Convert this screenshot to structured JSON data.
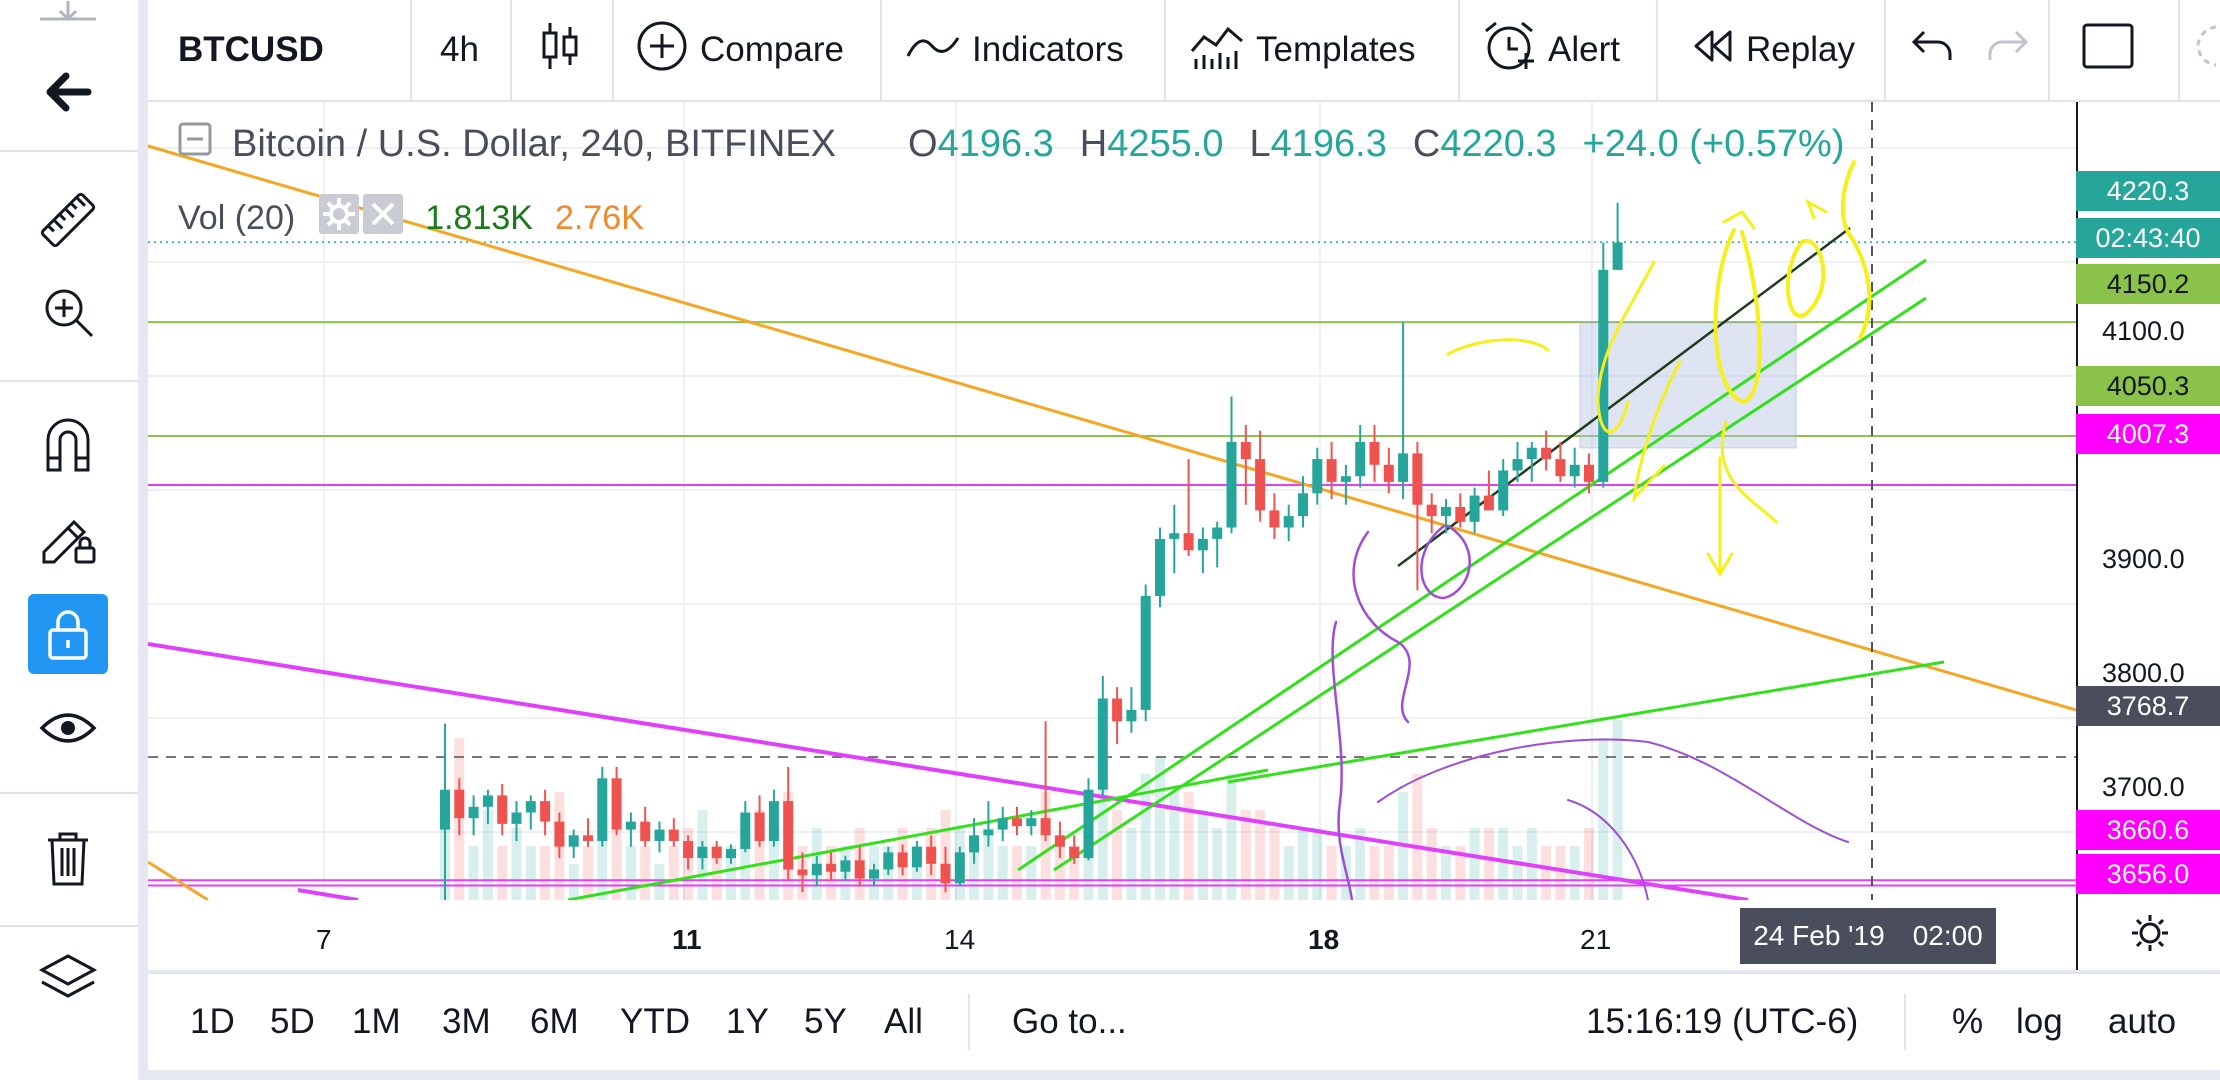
{
  "toolbar": {
    "symbol": "BTCUSD",
    "interval": "4h",
    "compare": "Compare",
    "indicators": "Indicators",
    "templates": "Templates",
    "alert": "Alert",
    "replay": "Replay"
  },
  "legend": {
    "title": "Bitcoin / U.S. Dollar, 240, BITFINEX",
    "o_label": "O",
    "o_value": "4196.3",
    "h_label": "H",
    "h_value": "4255.0",
    "l_label": "L",
    "l_value": "4196.3",
    "c_label": "C",
    "c_value": "4220.3",
    "change": "+24.0 (+0.57%)",
    "vol_label": "Vol (20)",
    "vol_value_1": "1.813K",
    "vol_value_2": "2.76K"
  },
  "price_axis": {
    "ticks": [
      "4100.0",
      "3900.0",
      "3800.0",
      "3700.0"
    ],
    "badges": {
      "last": "4220.3",
      "countdown": "02:43:40",
      "level_4150": "4150.2",
      "level_4050": "4050.3",
      "level_4007": "4007.3",
      "crosshair": "3768.7",
      "level_3660": "3660.6",
      "level_3656": "3656.0"
    }
  },
  "time_axis": {
    "ticks": [
      "7",
      "11",
      "14",
      "18",
      "21"
    ],
    "crosshair_date": "24 Feb '19",
    "crosshair_time": "02:00"
  },
  "bottombar": {
    "ranges": [
      "1D",
      "5D",
      "1M",
      "3M",
      "6M",
      "YTD",
      "1Y",
      "5Y",
      "All"
    ],
    "goto": "Go to...",
    "clock": "15:16:19 (UTC-6)",
    "percent": "%",
    "log": "log",
    "auto": "auto"
  },
  "colors": {
    "up": "#26a69a",
    "down": "#ef5350",
    "orange_line": "#f5a623",
    "magenta_line": "#e040fb",
    "green_line": "#33e01c",
    "level_green": "#8bc34a",
    "vol_orange": "#ef8a2e",
    "vol_green": "#1b7a1b"
  },
  "chart_data": {
    "type": "candlestick",
    "symbol": "BTCUSD",
    "candles": [
      {
        "o": 3705,
        "h": 3798,
        "l": 3640,
        "c": 3740
      },
      {
        "o": 3740,
        "h": 3750,
        "l": 3700,
        "c": 3715
      },
      {
        "o": 3715,
        "h": 3735,
        "l": 3700,
        "c": 3725
      },
      {
        "o": 3725,
        "h": 3740,
        "l": 3710,
        "c": 3735
      },
      {
        "o": 3735,
        "h": 3745,
        "l": 3700,
        "c": 3710
      },
      {
        "o": 3710,
        "h": 3730,
        "l": 3695,
        "c": 3720
      },
      {
        "o": 3720,
        "h": 3735,
        "l": 3705,
        "c": 3730
      },
      {
        "o": 3730,
        "h": 3740,
        "l": 3700,
        "c": 3712
      },
      {
        "o": 3712,
        "h": 3720,
        "l": 3680,
        "c": 3690
      },
      {
        "o": 3690,
        "h": 3705,
        "l": 3680,
        "c": 3700
      },
      {
        "o": 3700,
        "h": 3715,
        "l": 3690,
        "c": 3695
      },
      {
        "o": 3695,
        "h": 3760,
        "l": 3690,
        "c": 3750
      },
      {
        "o": 3750,
        "h": 3760,
        "l": 3700,
        "c": 3705
      },
      {
        "o": 3705,
        "h": 3720,
        "l": 3690,
        "c": 3712
      },
      {
        "o": 3712,
        "h": 3725,
        "l": 3690,
        "c": 3695
      },
      {
        "o": 3695,
        "h": 3712,
        "l": 3685,
        "c": 3705
      },
      {
        "o": 3705,
        "h": 3715,
        "l": 3690,
        "c": 3695
      },
      {
        "o": 3695,
        "h": 3700,
        "l": 3670,
        "c": 3680
      },
      {
        "o": 3680,
        "h": 3695,
        "l": 3670,
        "c": 3690
      },
      {
        "o": 3690,
        "h": 3695,
        "l": 3675,
        "c": 3680
      },
      {
        "o": 3680,
        "h": 3692,
        "l": 3675,
        "c": 3688
      },
      {
        "o": 3688,
        "h": 3730,
        "l": 3685,
        "c": 3720
      },
      {
        "o": 3720,
        "h": 3735,
        "l": 3690,
        "c": 3695
      },
      {
        "o": 3695,
        "h": 3740,
        "l": 3690,
        "c": 3730
      },
      {
        "o": 3730,
        "h": 3760,
        "l": 3660,
        "c": 3670
      },
      {
        "o": 3670,
        "h": 3685,
        "l": 3650,
        "c": 3665
      },
      {
        "o": 3665,
        "h": 3682,
        "l": 3655,
        "c": 3675
      },
      {
        "o": 3675,
        "h": 3685,
        "l": 3660,
        "c": 3668
      },
      {
        "o": 3668,
        "h": 3682,
        "l": 3660,
        "c": 3678
      },
      {
        "o": 3678,
        "h": 3690,
        "l": 3655,
        "c": 3662
      },
      {
        "o": 3662,
        "h": 3675,
        "l": 3655,
        "c": 3670
      },
      {
        "o": 3670,
        "h": 3690,
        "l": 3665,
        "c": 3685
      },
      {
        "o": 3685,
        "h": 3692,
        "l": 3665,
        "c": 3672
      },
      {
        "o": 3672,
        "h": 3695,
        "l": 3668,
        "c": 3690
      },
      {
        "o": 3690,
        "h": 3700,
        "l": 3665,
        "c": 3675
      },
      {
        "o": 3675,
        "h": 3690,
        "l": 3650,
        "c": 3658
      },
      {
        "o": 3658,
        "h": 3690,
        "l": 3655,
        "c": 3685
      },
      {
        "o": 3685,
        "h": 3715,
        "l": 3675,
        "c": 3700
      },
      {
        "o": 3700,
        "h": 3730,
        "l": 3690,
        "c": 3705
      },
      {
        "o": 3705,
        "h": 3725,
        "l": 3695,
        "c": 3715
      },
      {
        "o": 3715,
        "h": 3725,
        "l": 3700,
        "c": 3708
      },
      {
        "o": 3708,
        "h": 3722,
        "l": 3700,
        "c": 3715
      },
      {
        "o": 3715,
        "h": 3800,
        "l": 3695,
        "c": 3700
      },
      {
        "o": 3700,
        "h": 3712,
        "l": 3680,
        "c": 3690
      },
      {
        "o": 3690,
        "h": 3700,
        "l": 3675,
        "c": 3680
      },
      {
        "o": 3680,
        "h": 3750,
        "l": 3678,
        "c": 3740
      },
      {
        "o": 3740,
        "h": 3840,
        "l": 3735,
        "c": 3820
      },
      {
        "o": 3820,
        "h": 3830,
        "l": 3780,
        "c": 3800
      },
      {
        "o": 3800,
        "h": 3830,
        "l": 3790,
        "c": 3810
      },
      {
        "o": 3810,
        "h": 3920,
        "l": 3800,
        "c": 3910
      },
      {
        "o": 3910,
        "h": 3970,
        "l": 3900,
        "c": 3960
      },
      {
        "o": 3960,
        "h": 3990,
        "l": 3930,
        "c": 3965
      },
      {
        "o": 3965,
        "h": 4030,
        "l": 3945,
        "c": 3950
      },
      {
        "o": 3950,
        "h": 3970,
        "l": 3930,
        "c": 3960
      },
      {
        "o": 3960,
        "h": 3975,
        "l": 3935,
        "c": 3970
      },
      {
        "o": 3970,
        "h": 4085,
        "l": 3965,
        "c": 4045
      },
      {
        "o": 4045,
        "h": 4060,
        "l": 3990,
        "c": 4030
      },
      {
        "o": 4030,
        "h": 4055,
        "l": 3975,
        "c": 3985
      },
      {
        "o": 3985,
        "h": 4000,
        "l": 3960,
        "c": 3970
      },
      {
        "o": 3970,
        "h": 3990,
        "l": 3958,
        "c": 3980
      },
      {
        "o": 3980,
        "h": 4015,
        "l": 3970,
        "c": 4000
      },
      {
        "o": 4000,
        "h": 4040,
        "l": 3990,
        "c": 4030
      },
      {
        "o": 4030,
        "h": 4045,
        "l": 3995,
        "c": 4010
      },
      {
        "o": 4010,
        "h": 4025,
        "l": 3990,
        "c": 4015
      },
      {
        "o": 4015,
        "h": 4060,
        "l": 4005,
        "c": 4045
      },
      {
        "o": 4045,
        "h": 4060,
        "l": 4010,
        "c": 4025
      },
      {
        "o": 4025,
        "h": 4040,
        "l": 4000,
        "c": 4010
      },
      {
        "o": 4010,
        "h": 4150,
        "l": 3995,
        "c": 4035
      },
      {
        "o": 4035,
        "h": 4045,
        "l": 3915,
        "c": 3990
      },
      {
        "o": 3990,
        "h": 4000,
        "l": 3965,
        "c": 3980
      },
      {
        "o": 3980,
        "h": 3995,
        "l": 3965,
        "c": 3988
      },
      {
        "o": 3988,
        "h": 4000,
        "l": 3970,
        "c": 3975
      },
      {
        "o": 3975,
        "h": 4005,
        "l": 3965,
        "c": 3998
      },
      {
        "o": 3998,
        "h": 4020,
        "l": 3985,
        "c": 3985
      },
      {
        "o": 3985,
        "h": 4030,
        "l": 3980,
        "c": 4020
      },
      {
        "o": 4020,
        "h": 4045,
        "l": 4010,
        "c": 4030
      },
      {
        "o": 4030,
        "h": 4045,
        "l": 4010,
        "c": 4040
      },
      {
        "o": 4040,
        "h": 4055,
        "l": 4020,
        "c": 4030
      },
      {
        "o": 4030,
        "h": 4045,
        "l": 4010,
        "c": 4015
      },
      {
        "o": 4015,
        "h": 4040,
        "l": 4005,
        "c": 4025
      },
      {
        "o": 4025,
        "h": 4035,
        "l": 4000,
        "c": 4010
      },
      {
        "o": 4010,
        "h": 4220,
        "l": 4005,
        "c": 4196
      },
      {
        "o": 4196,
        "h": 4255,
        "l": 4196,
        "c": 4220
      }
    ],
    "volume": [
      0.4,
      0.9,
      0.3,
      0.5,
      0.3,
      0.4,
      0.3,
      0.3,
      0.6,
      0.2,
      0.3,
      0.5,
      0.4,
      0.3,
      0.3,
      0.2,
      0.3,
      0.4,
      0.5,
      0.3,
      0.3,
      0.4,
      0.5,
      0.4,
      0.6,
      0.3,
      0.4,
      0.3,
      0.3,
      0.4,
      0.3,
      0.3,
      0.4,
      0.3,
      0.4,
      0.5,
      0.4,
      0.3,
      0.4,
      0.3,
      0.3,
      0.3,
      0.6,
      0.3,
      0.3,
      0.4,
      0.7,
      0.5,
      0.4,
      0.7,
      0.8,
      0.6,
      0.6,
      0.5,
      0.4,
      0.7,
      0.5,
      0.5,
      0.4,
      0.3,
      0.4,
      0.4,
      0.3,
      0.3,
      0.4,
      0.3,
      0.3,
      0.6,
      0.7,
      0.4,
      0.3,
      0.3,
      0.4,
      0.4,
      0.4,
      0.3,
      0.4,
      0.3,
      0.3,
      0.3,
      0.4,
      0.9,
      1.0
    ],
    "horizontal_levels": [
      4150.2,
      4050.3,
      4007.3,
      3768.7,
      3660.6,
      3656.0
    ],
    "ylim": [
      3645,
      4270
    ]
  }
}
